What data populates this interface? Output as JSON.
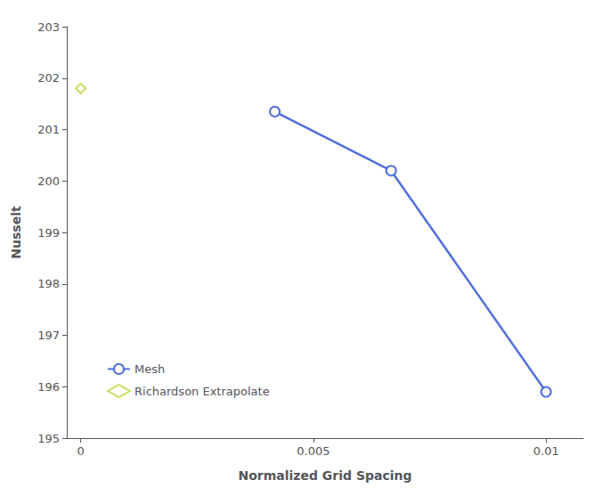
{
  "chart_data": {
    "type": "line",
    "xlabel": "Normalized Grid Spacing",
    "ylabel": "Nusselt",
    "series": [
      {
        "name": "Mesh",
        "type": "line",
        "marker": "circle",
        "x": [
          0.00417,
          0.00667,
          0.01
        ],
        "values": [
          201.35,
          200.2,
          195.9
        ]
      },
      {
        "name": "Richardson Extrapolate",
        "type": "scatter",
        "marker": "diamond",
        "x": [
          0.0
        ],
        "values": [
          201.8
        ]
      }
    ],
    "xlim": [
      -0.0003,
      0.0108
    ],
    "xticks": [
      0,
      0.005,
      0.01
    ],
    "ylim": [
      195.0,
      203.0
    ],
    "yticks": [
      195,
      196,
      197,
      198,
      199,
      200,
      201,
      202,
      203
    ],
    "grid": false,
    "legend": "lower left"
  }
}
